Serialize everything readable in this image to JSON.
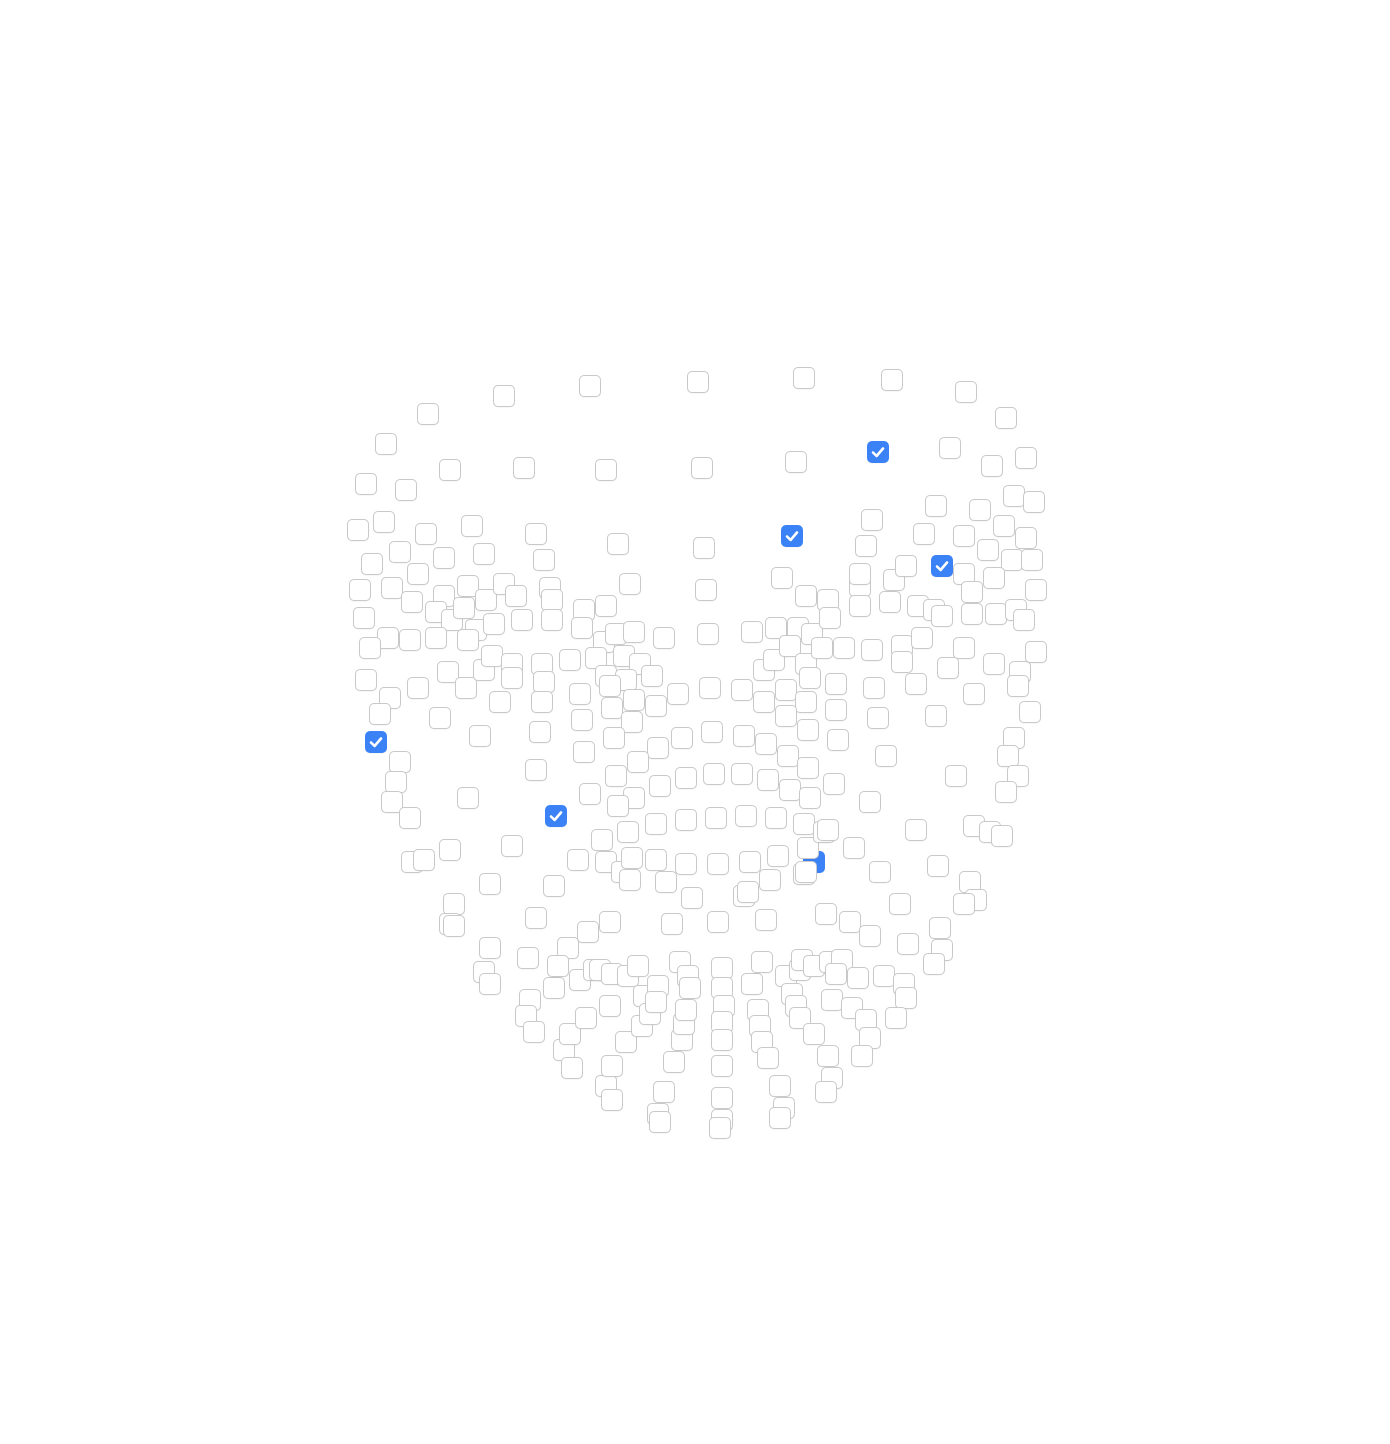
{
  "colors": {
    "checked": "#3b82f6",
    "unchecked_border": "#c9c9c9",
    "background": "#ffffff"
  },
  "icon": "checkmark-icon",
  "checkboxes_checked_count": 6
}
